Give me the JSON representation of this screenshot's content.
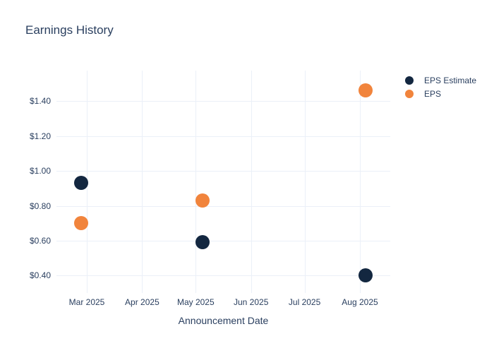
{
  "page": {
    "background": "#ffffff"
  },
  "title": "Earnings History",
  "x_axis_title": "Announcement Date",
  "colors": {
    "title_text": "#2a3f5f",
    "tick_text": "#2a3f5f",
    "grid": "#ebf0f8",
    "eps_estimate": "#132740",
    "eps": "#f1843c",
    "background": "#ffffff"
  },
  "legend": {
    "position": "right",
    "items": [
      {
        "label": "EPS Estimate",
        "color": "#132740"
      },
      {
        "label": "EPS",
        "color": "#f1843c"
      }
    ]
  },
  "chart_data": {
    "type": "scatter",
    "title": "Earnings History",
    "xlabel": "Announcement Date",
    "ylabel": "",
    "grid": true,
    "legend_position": "right",
    "xlim": [
      "2025-02-12",
      "2025-08-18"
    ],
    "ylim": [
      0.3,
      1.575
    ],
    "x_ticks": [
      {
        "date": "2025-03-01",
        "label": "Mar 2025"
      },
      {
        "date": "2025-04-01",
        "label": "Apr 2025"
      },
      {
        "date": "2025-05-01",
        "label": "May 2025"
      },
      {
        "date": "2025-06-01",
        "label": "Jun 2025"
      },
      {
        "date": "2025-07-01",
        "label": "Jul 2025"
      },
      {
        "date": "2025-08-01",
        "label": "Aug 2025"
      }
    ],
    "y_ticks": [
      {
        "value": 0.4,
        "label": "$0.40"
      },
      {
        "value": 0.6,
        "label": "$0.60"
      },
      {
        "value": 0.8,
        "label": "$0.80"
      },
      {
        "value": 1.0,
        "label": "$1.00"
      },
      {
        "value": 1.2,
        "label": "$1.20"
      },
      {
        "value": 1.4,
        "label": "$1.40"
      }
    ],
    "series": [
      {
        "name": "EPS Estimate",
        "color": "#132740",
        "points": [
          {
            "date": "2025-02-26",
            "value": 0.93
          },
          {
            "date": "2025-05-05",
            "value": 0.59
          },
          {
            "date": "2025-08-04",
            "value": 0.4
          }
        ]
      },
      {
        "name": "EPS",
        "color": "#f1843c",
        "points": [
          {
            "date": "2025-02-26",
            "value": 0.7
          },
          {
            "date": "2025-05-05",
            "value": 0.83
          },
          {
            "date": "2025-08-04",
            "value": 1.46
          }
        ]
      }
    ]
  }
}
